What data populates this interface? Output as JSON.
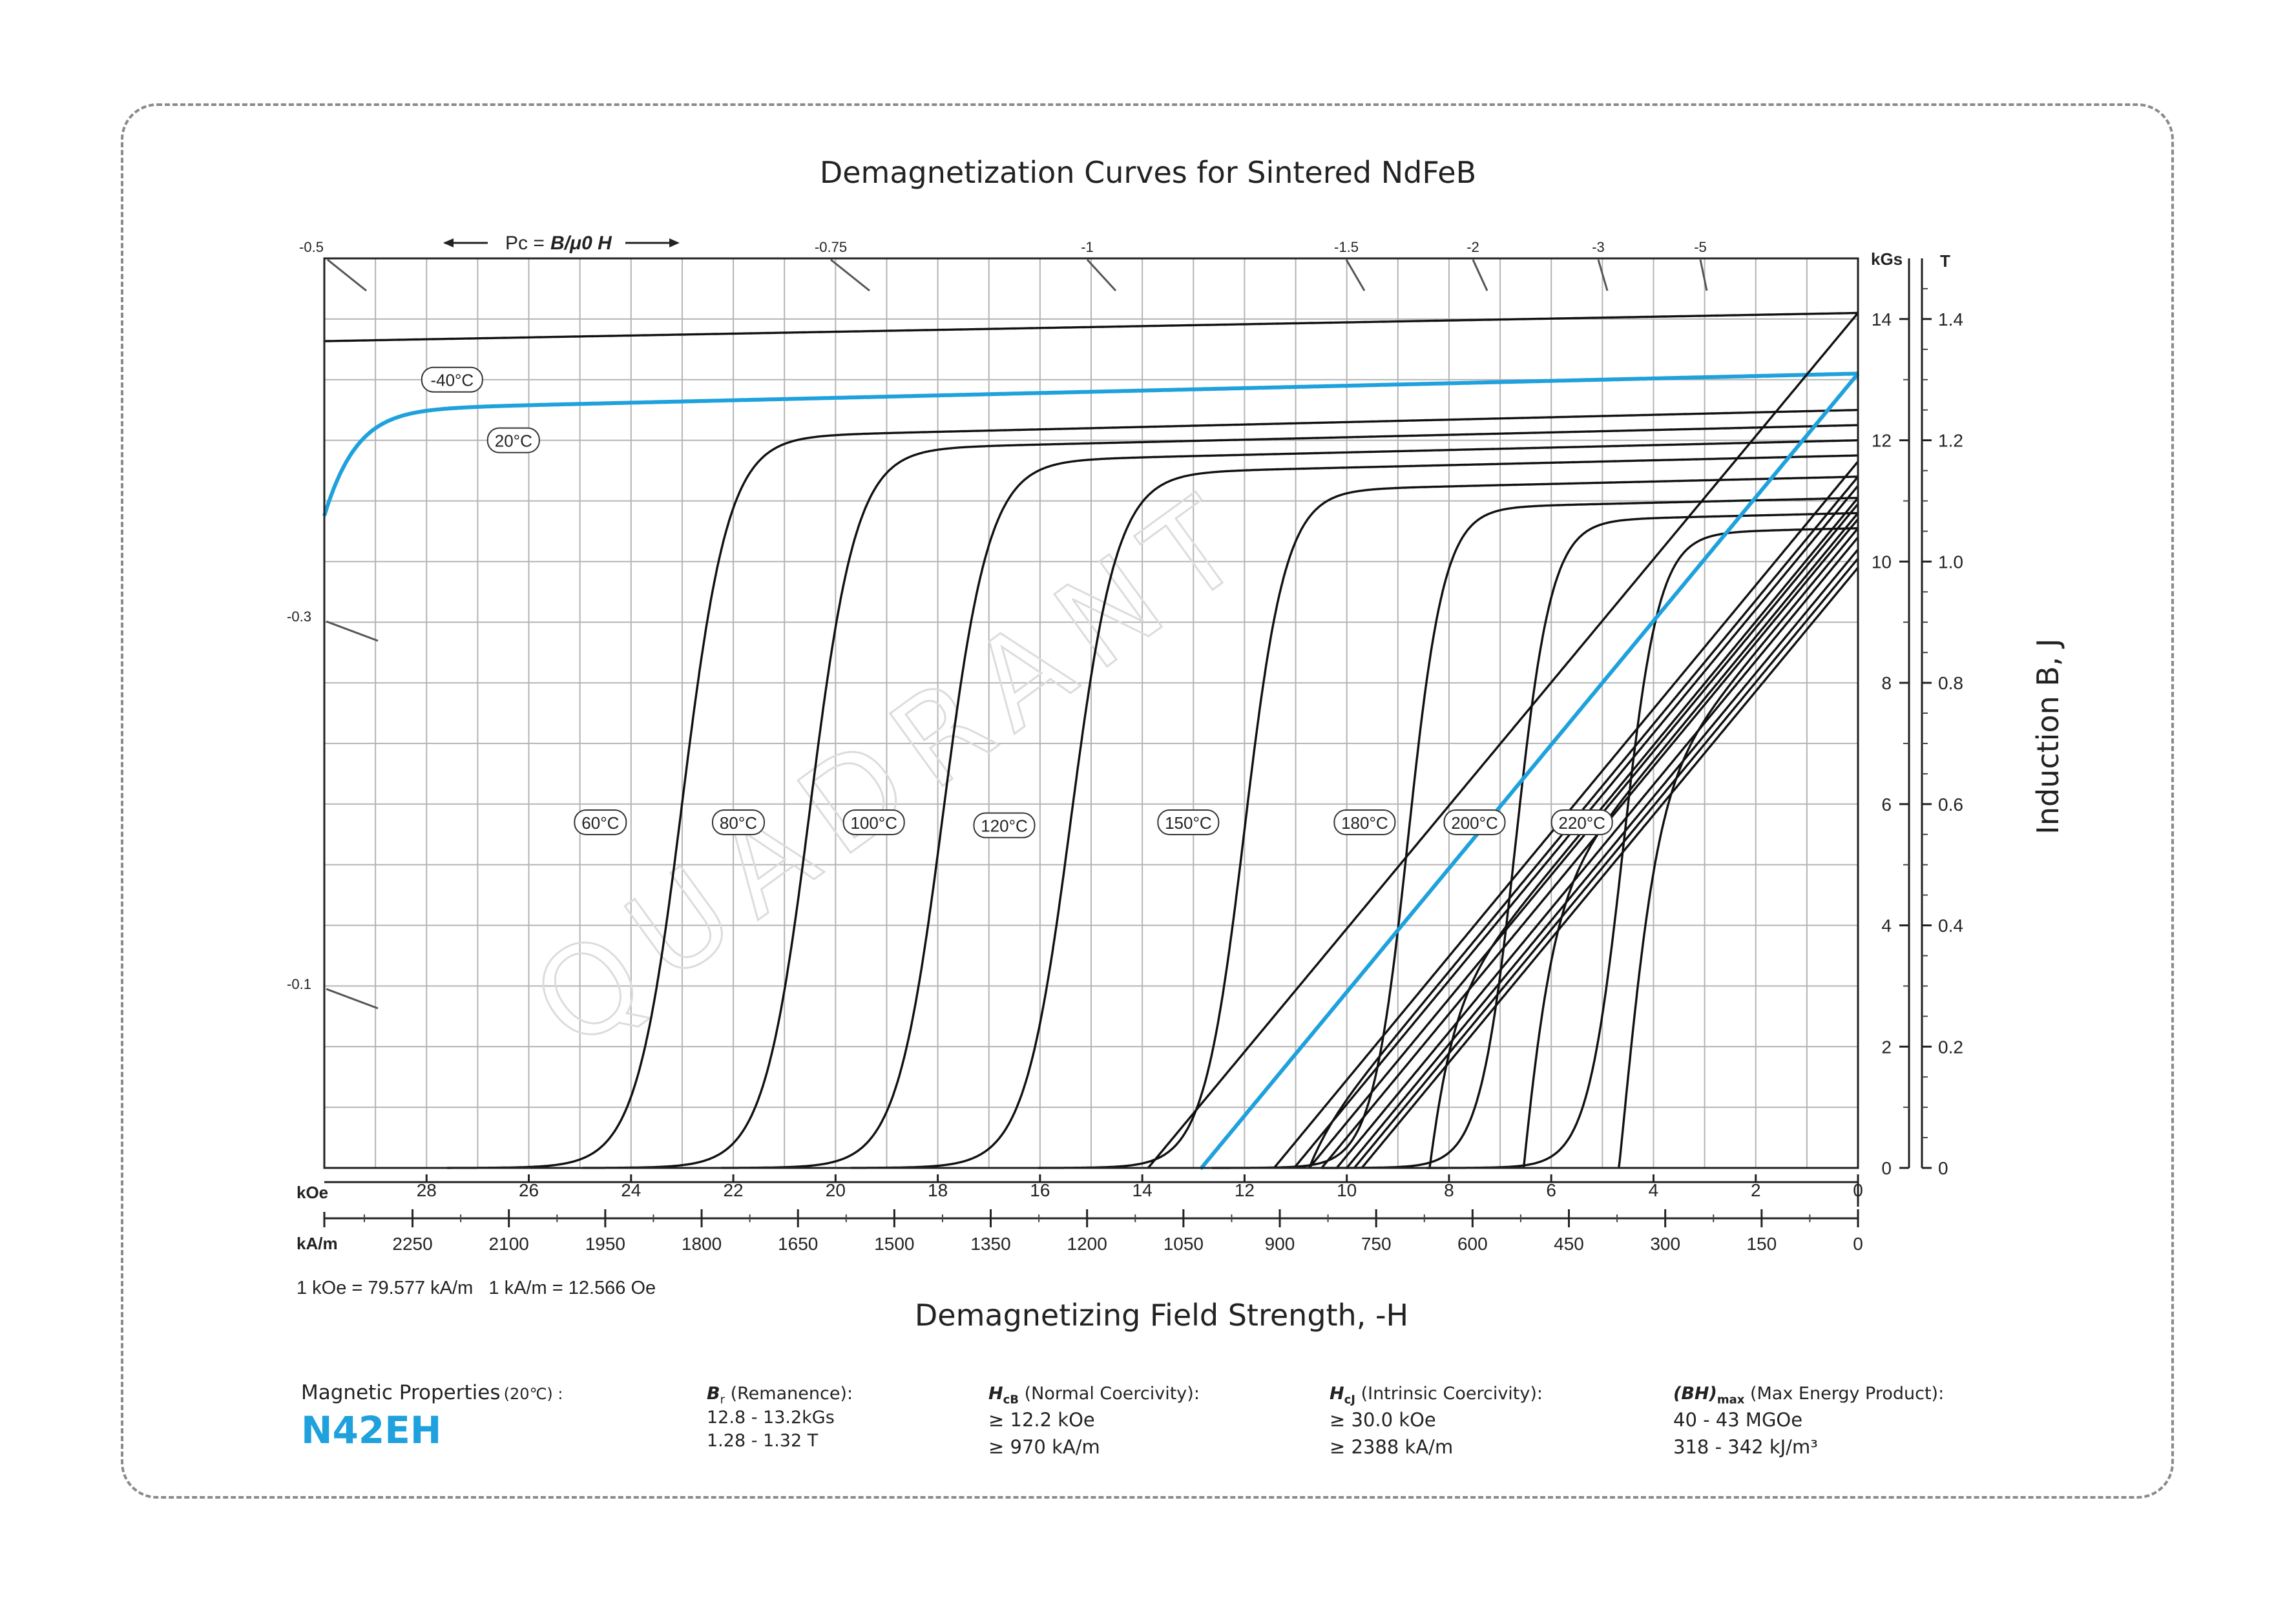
{
  "chart_data": {
    "type": "line",
    "title": "Demagnetization Curves for Sintered NdFeB",
    "xlabel": "Demagnetizing Field Strength, -H",
    "ylabel": "Induction B, J",
    "x_unit_primary": "kOe",
    "x_unit_secondary": "kA/m",
    "y_unit_primary": "kGs",
    "y_unit_secondary": "T",
    "xlim": [
      0,
      30
    ],
    "ylim": [
      0,
      15
    ],
    "x_ticks_koe": [
      "28",
      "26",
      "24",
      "22",
      "20",
      "18",
      "16",
      "14",
      "12",
      "10",
      "8",
      "6",
      "4",
      "2",
      "0"
    ],
    "x_ticks_kam": [
      "2250",
      "2100",
      "1950",
      "1800",
      "1650",
      "1500",
      "1350",
      "1200",
      "1050",
      "900",
      "750",
      "600",
      "450",
      "300",
      "150",
      "0"
    ],
    "y_ticks_kgs": [
      "14",
      "12",
      "10",
      "8",
      "6",
      "4",
      "2",
      "0"
    ],
    "y_ticks_t": [
      "1.4",
      "1.2",
      "1.0",
      "0.8",
      "0.6",
      "0.4",
      "0.2",
      "0"
    ],
    "conversion_note": "1 kOe = 79.577 kA/m   1 kA/m = 12.566 Oe",
    "permeance_label_prefix": "Pc =",
    "permeance_label_formula": "B/μ0 H",
    "permeance_values": [
      "-0.5",
      "-0.75",
      "-1",
      "-1.5",
      "-2",
      "-3",
      "-5",
      "-0.3",
      "-0.1"
    ],
    "grid": true,
    "highlight_color": "#1ea1dc",
    "series": [
      {
        "name": "-40°C",
        "label_x": 27.5,
        "label_y": 13.0,
        "J": {
          "Jr": 14.1,
          "slope": 0.0155,
          "Hk": 55,
          "Hcj": 56,
          "w": 1
        },
        "B_Br": 14.1
      },
      {
        "name": "20°C",
        "highlight": true,
        "label_x": 26.3,
        "label_y": 12.0,
        "J": {
          "Jr": 13.1,
          "slope": 0.02,
          "Hk": 31,
          "Hcj": 30.0,
          "w": 0.55
        },
        "B_Br": 13.1
      },
      {
        "name": "60°C",
        "label_x": 24.6,
        "label_y": 5.7,
        "J": {
          "Jr": 12.5,
          "slope": 0.02,
          "Hk": 23,
          "Hcj": 24.6,
          "w": 0.45
        }
      },
      {
        "name": "80°C",
        "label_x": 21.9,
        "label_y": 5.7,
        "J": {
          "Jr": 12.25,
          "slope": 0.02,
          "Hk": 20.5,
          "Hcj": 21.95,
          "w": 0.45
        }
      },
      {
        "name": "100°C",
        "label_x": 19.25,
        "label_y": 5.7,
        "J": {
          "Jr": 12.0,
          "slope": 0.02,
          "Hk": 17.9,
          "Hcj": 19.25,
          "w": 0.45
        }
      },
      {
        "name": "120°C",
        "label_x": 16.7,
        "label_y": 5.65,
        "J": {
          "Jr": 11.75,
          "slope": 0.02,
          "Hk": 15.4,
          "Hcj": 16.7,
          "w": 0.45
        }
      },
      {
        "name": "150°C",
        "label_x": 13.1,
        "label_y": 5.7,
        "J": {
          "Jr": 11.4,
          "slope": 0.02,
          "Hk": 12.0,
          "Hcj": 13.05,
          "w": 0.4
        },
        "B_Br": 11.4
      },
      {
        "name": "180°C",
        "label_x": 9.65,
        "label_y": 5.7,
        "J": {
          "Jr": 11.05,
          "slope": 0.02,
          "Hk": 8.8,
          "Hcj": 9.65,
          "w": 0.35
        },
        "B_Br": 11.05
      },
      {
        "name": "200°C",
        "label_x": 7.5,
        "label_y": 5.7,
        "J": {
          "Jr": 10.8,
          "slope": 0.02,
          "Hk": 6.7,
          "Hcj": 7.5,
          "w": 0.35
        },
        "B_Br": 10.8
      },
      {
        "name": "220°C",
        "label_x": 5.4,
        "label_y": 5.7,
        "J": {
          "Jr": 10.55,
          "slope": 0.02,
          "Hk": 4.6,
          "Hcj": 5.45,
          "w": 0.35
        },
        "B_Br": 10.55
      }
    ],
    "extra_B_lines_Br": [
      11.65,
      11.25,
      10.95,
      10.7,
      10.4,
      10.2,
      10.05,
      9.9
    ]
  },
  "props": {
    "heading": "Magnetic Properties",
    "heading_temp": "(20℃) :",
    "grade": "N42EH",
    "br_sym": "B",
    "br_sub": "r",
    "br_desc": "(Remanence):",
    "br_v1": "12.8 - 13.2kGs",
    "br_v2": "1.28 - 1.32 T",
    "hcb_sym": "H",
    "hcb_sub": "cB",
    "hcb_desc": "(Normal Coercivity):",
    "hcb_v1": "≥ 12.2 kOe",
    "hcb_v2": "≥ 970 kA/m",
    "hcj_sym": "H",
    "hcj_sub": "cJ",
    "hcj_desc": "(Intrinsic Coercivity):",
    "hcj_v1": "≥ 30.0 kOe",
    "hcj_v2": "≥ 2388 kA/m",
    "bh_sym": "(BH)",
    "bh_sub": "max",
    "bh_desc": "(Max Energy Product):",
    "bh_v1": "40 - 43 MGOe",
    "bh_v2": "318 - 342 kJ/m³"
  },
  "watermark": "QUADRANT"
}
